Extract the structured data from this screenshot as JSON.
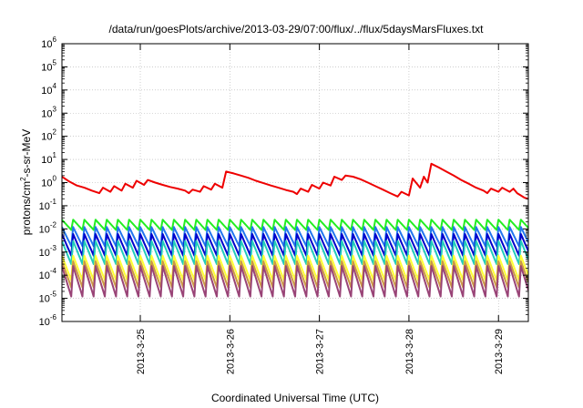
{
  "chart_data": {
    "type": "line",
    "title": "/data/run/goesPlots/archive/2013-03-29/07:00/flux/../flux/5daysMarsFluxes.txt",
    "xlabel": "Coordinated Universal Time (UTC)",
    "ylabel": "protons/cm²-s-sr-MeV",
    "ylabel_parts": {
      "pre": "protons/cm",
      "sup": "2",
      "post": "-s-sr-MeV"
    },
    "yscale": "log",
    "ylim_exp": [
      -6,
      6
    ],
    "y_ticks": [
      {
        "base": "10",
        "exp": "-6"
      },
      {
        "base": "10",
        "exp": "-5"
      },
      {
        "base": "10",
        "exp": "-4"
      },
      {
        "base": "10",
        "exp": "-3"
      },
      {
        "base": "10",
        "exp": "-2"
      },
      {
        "base": "10",
        "exp": "-1"
      },
      {
        "base": "10",
        "exp": "0"
      },
      {
        "base": "10",
        "exp": "1"
      },
      {
        "base": "10",
        "exp": "2"
      },
      {
        "base": "10",
        "exp": "3"
      },
      {
        "base": "10",
        "exp": "4"
      },
      {
        "base": "10",
        "exp": "5"
      },
      {
        "base": "10",
        "exp": "6"
      }
    ],
    "xlim": [
      "2013-03-24 03:00",
      "2013-03-29 08:00"
    ],
    "x_ticks": [
      {
        "label": "2013-3-25",
        "value": "2013-03-25 00:00"
      },
      {
        "label": "2013-3-26",
        "value": "2013-03-26 00:00"
      },
      {
        "label": "2013-3-27",
        "value": "2013-03-27 00:00"
      },
      {
        "label": "2013-3-28",
        "value": "2013-03-28 00:00"
      },
      {
        "label": "2013-3-29",
        "value": "2013-03-29 00:00"
      }
    ],
    "grid": true,
    "legend": "none",
    "series": [
      {
        "color": "#ee0000",
        "points": [
          [
            "2013-03-24 03:00",
            1.8
          ],
          [
            "2013-03-24 05:00",
            1.1
          ],
          [
            "2013-03-24 07:00",
            0.75
          ],
          [
            "2013-03-24 09:00",
            0.6
          ],
          [
            "2013-03-24 11:00",
            0.45
          ],
          [
            "2013-03-24 13:00",
            0.35
          ],
          [
            "2013-03-24 14:00",
            0.6
          ],
          [
            "2013-03-24 16:00",
            0.4
          ],
          [
            "2013-03-24 17:00",
            0.7
          ],
          [
            "2013-03-24 19:00",
            0.45
          ],
          [
            "2013-03-24 20:00",
            0.9
          ],
          [
            "2013-03-24 22:00",
            0.6
          ],
          [
            "2013-03-24 23:00",
            1.2
          ],
          [
            "2013-03-25 01:00",
            0.8
          ],
          [
            "2013-03-25 02:00",
            1.3
          ],
          [
            "2013-03-25 04:00",
            1.0
          ],
          [
            "2013-03-25 06:00",
            0.8
          ],
          [
            "2013-03-25 08:00",
            0.65
          ],
          [
            "2013-03-25 10:00",
            0.55
          ],
          [
            "2013-03-25 12:00",
            0.45
          ],
          [
            "2013-03-25 13:00",
            0.35
          ],
          [
            "2013-03-25 14:00",
            0.5
          ],
          [
            "2013-03-25 16:00",
            0.4
          ],
          [
            "2013-03-25 17:00",
            0.7
          ],
          [
            "2013-03-25 19:00",
            0.5
          ],
          [
            "2013-03-25 20:00",
            0.9
          ],
          [
            "2013-03-25 22:00",
            0.6
          ],
          [
            "2013-03-25 23:00",
            3.0
          ],
          [
            "2013-03-26 01:00",
            2.5
          ],
          [
            "2013-03-26 03:00",
            2.0
          ],
          [
            "2013-03-26 05:00",
            1.6
          ],
          [
            "2013-03-26 07:00",
            1.2
          ],
          [
            "2013-03-26 09:00",
            0.95
          ],
          [
            "2013-03-26 11:00",
            0.75
          ],
          [
            "2013-03-26 13:00",
            0.6
          ],
          [
            "2013-03-26 15:00",
            0.48
          ],
          [
            "2013-03-26 17:00",
            0.4
          ],
          [
            "2013-03-26 18:00",
            0.32
          ],
          [
            "2013-03-26 19:00",
            0.55
          ],
          [
            "2013-03-26 21:00",
            0.4
          ],
          [
            "2013-03-26 22:00",
            0.8
          ],
          [
            "2013-03-27 00:00",
            0.55
          ],
          [
            "2013-03-27 01:00",
            1.0
          ],
          [
            "2013-03-27 03:00",
            0.75
          ],
          [
            "2013-03-27 04:00",
            1.8
          ],
          [
            "2013-03-27 06:00",
            1.3
          ],
          [
            "2013-03-27 07:00",
            2.0
          ],
          [
            "2013-03-27 09:00",
            1.8
          ],
          [
            "2013-03-27 11:00",
            1.4
          ],
          [
            "2013-03-27 13:00",
            1.0
          ],
          [
            "2013-03-27 15:00",
            0.7
          ],
          [
            "2013-03-27 17:00",
            0.5
          ],
          [
            "2013-03-27 19:00",
            0.35
          ],
          [
            "2013-03-27 21:00",
            0.25
          ],
          [
            "2013-03-27 22:00",
            0.4
          ],
          [
            "2013-03-28 00:00",
            0.28
          ],
          [
            "2013-03-28 01:00",
            1.5
          ],
          [
            "2013-03-28 03:00",
            0.6
          ],
          [
            "2013-03-28 04:00",
            1.8
          ],
          [
            "2013-03-28 05:00",
            1.0
          ],
          [
            "2013-03-28 06:00",
            6.5
          ],
          [
            "2013-03-28 08:00",
            4.5
          ],
          [
            "2013-03-28 10:00",
            3.0
          ],
          [
            "2013-03-28 12:00",
            2.0
          ],
          [
            "2013-03-28 14:00",
            1.3
          ],
          [
            "2013-03-28 16:00",
            0.9
          ],
          [
            "2013-03-28 18:00",
            0.6
          ],
          [
            "2013-03-28 20:00",
            0.45
          ],
          [
            "2013-03-28 21:00",
            0.35
          ],
          [
            "2013-03-28 22:00",
            0.55
          ],
          [
            "2013-03-29 00:00",
            0.4
          ],
          [
            "2013-03-29 01:00",
            0.6
          ],
          [
            "2013-03-29 03:00",
            0.4
          ],
          [
            "2013-03-29 04:00",
            0.55
          ],
          [
            "2013-03-29 05:00",
            0.35
          ],
          [
            "2013-03-29 06:00",
            0.28
          ],
          [
            "2013-03-29 07:00",
            0.22
          ],
          [
            "2013-03-29 08:00",
            0.2
          ]
        ]
      },
      {
        "color": "#22ee22",
        "sawtooth": {
          "start": "2013-03-24 03:00",
          "end": "2013-03-29 08:00",
          "period_hours": 3,
          "high": 0.025,
          "low": 0.009
        }
      },
      {
        "color": "#2277ee",
        "sawtooth": {
          "start": "2013-03-24 03:00",
          "end": "2013-03-29 08:00",
          "period_hours": 3,
          "high": 0.012,
          "low": 0.0018
        }
      },
      {
        "color": "#0000cc",
        "sawtooth": {
          "start": "2013-03-24 03:00",
          "end": "2013-03-29 08:00",
          "period_hours": 3,
          "high": 0.006,
          "low": 0.0007
        }
      },
      {
        "color": "#22ccbb",
        "sawtooth": {
          "start": "2013-03-24 03:00",
          "end": "2013-03-29 08:00",
          "period_hours": 3,
          "high": 0.003,
          "low": 0.0003
        }
      },
      {
        "color": "#ffff33",
        "sawtooth": {
          "start": "2013-03-24 03:00",
          "end": "2013-03-29 08:00",
          "period_hours": 3,
          "high": 0.0007,
          "low": 6e-05
        }
      },
      {
        "color": "#cc9944",
        "sawtooth": {
          "start": "2013-03-24 03:00",
          "end": "2013-03-29 08:00",
          "period_hours": 3,
          "high": 0.0004,
          "low": 3e-05
        }
      },
      {
        "color": "#994477",
        "sawtooth": {
          "start": "2013-03-24 03:00",
          "end": "2013-03-29 08:00",
          "period_hours": 3,
          "high": 0.00025,
          "low": 1.2e-05
        }
      }
    ]
  }
}
